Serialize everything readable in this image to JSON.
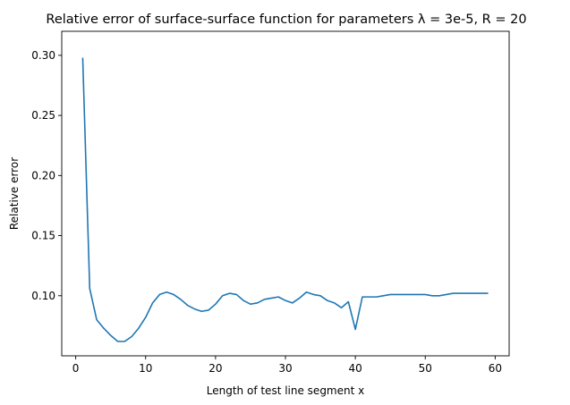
{
  "chart_data": {
    "type": "line",
    "title": "Relative error of surface-surface function for parameters λ = 3e-5, R = 20",
    "xlabel": "Length of test line segment x",
    "ylabel": "Relative error",
    "xlim": [
      -2,
      62
    ],
    "ylim": [
      0.05,
      0.32
    ],
    "xticks": [
      0,
      10,
      20,
      30,
      40,
      50,
      60
    ],
    "yticks": [
      0.1,
      0.15,
      0.2,
      0.25,
      0.3
    ],
    "xtick_labels": [
      "0",
      "10",
      "20",
      "30",
      "40",
      "50",
      "60"
    ],
    "ytick_labels": [
      "0.10",
      "0.15",
      "0.20",
      "0.25",
      "0.30"
    ],
    "grid": false,
    "series": [
      {
        "color": "#1f77b4",
        "x": [
          1,
          2,
          3,
          4,
          5,
          6,
          7,
          8,
          9,
          10,
          11,
          12,
          13,
          14,
          15,
          16,
          17,
          18,
          19,
          20,
          21,
          22,
          23,
          24,
          25,
          26,
          27,
          28,
          29,
          30,
          31,
          32,
          33,
          34,
          35,
          36,
          37,
          38,
          39,
          40,
          41,
          42,
          43,
          44,
          45,
          46,
          47,
          48,
          49,
          50,
          51,
          52,
          53,
          54,
          55,
          56,
          57,
          58,
          59
        ],
        "y": [
          0.298,
          0.106,
          0.08,
          0.073,
          0.067,
          0.062,
          0.062,
          0.066,
          0.073,
          0.082,
          0.094,
          0.101,
          0.103,
          0.101,
          0.097,
          0.092,
          0.089,
          0.087,
          0.088,
          0.093,
          0.1,
          0.102,
          0.101,
          0.096,
          0.093,
          0.094,
          0.097,
          0.098,
          0.099,
          0.096,
          0.094,
          0.098,
          0.103,
          0.101,
          0.1,
          0.096,
          0.094,
          0.09,
          0.095,
          0.072,
          0.099,
          0.099,
          0.099,
          0.1,
          0.101,
          0.101,
          0.101,
          0.101,
          0.101,
          0.101,
          0.1,
          0.1,
          0.101,
          0.102,
          0.102,
          0.102,
          0.102,
          0.102,
          0.102
        ]
      }
    ]
  }
}
